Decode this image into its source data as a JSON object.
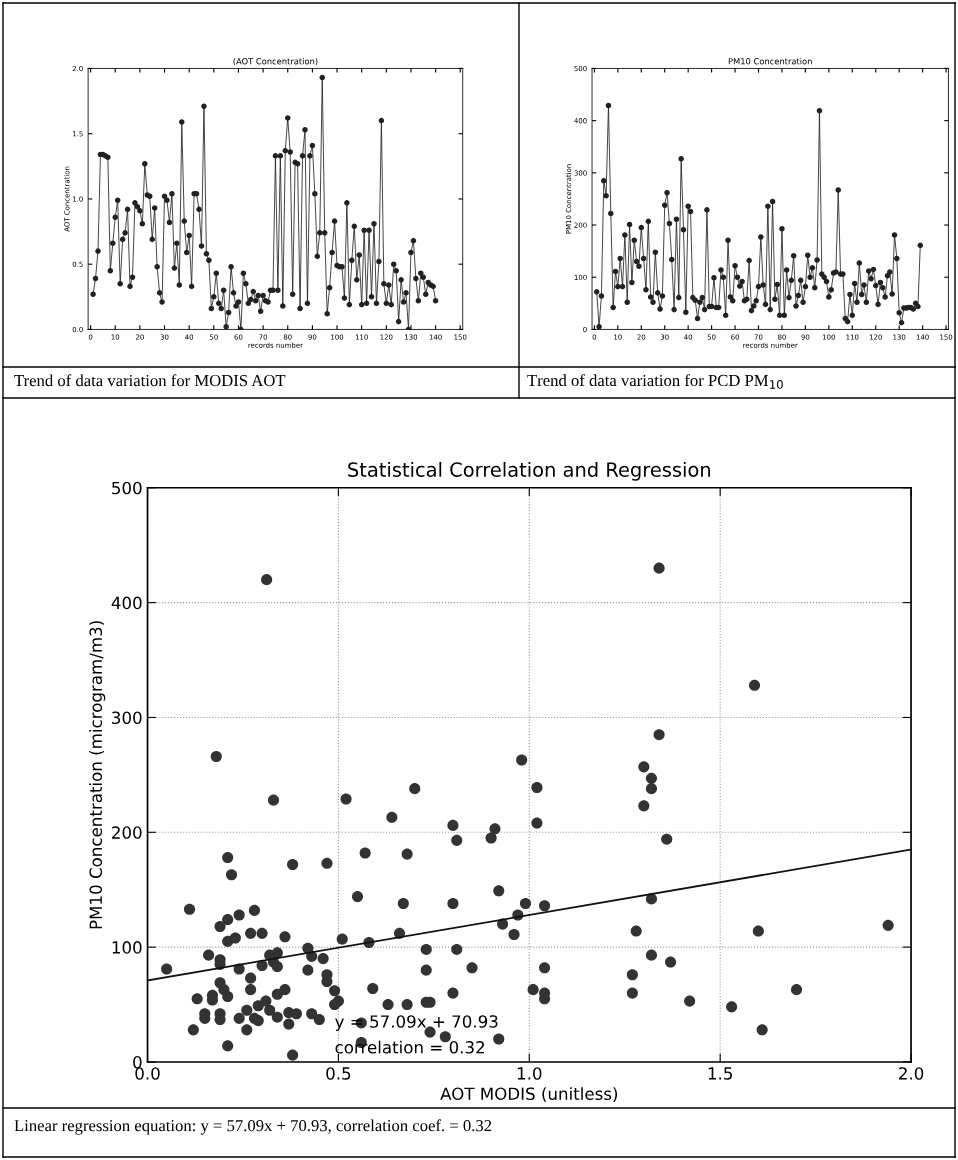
{
  "chart_data": [
    {
      "type": "line",
      "title": "(AOT Concentration)",
      "xlabel": "records number",
      "ylabel": "AOT Concentration",
      "marker": "circle",
      "line_style": "solid",
      "grid": false,
      "xlim": [
        -1,
        151
      ],
      "xticks": [
        0,
        10,
        20,
        30,
        40,
        50,
        60,
        70,
        80,
        90,
        100,
        110,
        120,
        130,
        140,
        150
      ],
      "ylim": [
        0,
        2
      ],
      "yticks": [
        {
          "value": 0,
          "label": "0.0"
        },
        {
          "value": 0.5,
          "label": "0.5"
        },
        {
          "value": 1,
          "label": "1.0"
        },
        {
          "value": 1.5,
          "label": "1.5"
        },
        {
          "value": 2,
          "label": "2.0"
        }
      ],
      "annotations": [
        "Trend of data variation for MODIS AOT"
      ],
      "x": [
        1,
        2,
        3,
        4,
        5,
        6,
        7,
        8,
        9,
        10,
        11,
        12,
        13,
        14,
        15,
        16,
        17,
        18,
        19,
        20,
        21,
        22,
        23,
        24,
        25,
        26,
        27,
        28,
        29,
        30,
        31,
        32,
        33,
        34,
        35,
        36,
        37,
        38,
        39,
        40,
        41,
        42,
        43,
        44,
        45,
        46,
        47,
        48,
        49,
        50,
        51,
        52,
        53,
        54,
        55,
        56,
        57,
        58,
        59,
        60,
        61,
        62,
        63,
        64,
        65,
        66,
        67,
        68,
        69,
        70,
        71,
        72,
        73,
        74,
        75,
        76,
        77,
        78,
        79,
        80,
        81,
        82,
        83,
        84,
        85,
        86,
        87,
        88,
        89,
        90,
        91,
        92,
        93,
        94,
        95,
        96,
        97,
        98,
        99,
        100,
        101,
        102,
        103,
        104,
        105,
        106,
        107,
        108,
        109,
        110,
        111,
        112,
        113,
        114,
        115,
        116,
        117,
        118,
        119,
        120,
        121,
        122,
        123,
        124,
        125,
        126,
        127,
        128,
        129,
        130,
        131,
        132,
        133,
        134,
        135,
        136,
        137,
        138,
        139,
        140
      ],
      "series": [
        {
          "color": "#222222",
          "values": [
            0.27,
            0.39,
            0.6,
            1.34,
            1.34,
            1.33,
            1.32,
            0.45,
            0.66,
            0.86,
            0.99,
            0.35,
            0.69,
            0.74,
            0.92,
            0.33,
            0.4,
            0.97,
            0.94,
            0.91,
            0.81,
            1.27,
            1.03,
            1.02,
            0.69,
            0.93,
            0.48,
            0.28,
            0.21,
            1.02,
            0.99,
            0.82,
            1.04,
            0.47,
            0.66,
            0.34,
            1.59,
            0.83,
            0.59,
            0.72,
            0.33,
            1.04,
            1.04,
            0.92,
            0.64,
            1.71,
            0.58,
            0.53,
            0.16,
            0.25,
            0.43,
            0.2,
            0.16,
            0.3,
            0.02,
            0.13,
            0.48,
            0.28,
            0.18,
            0.21,
            0.0,
            0.43,
            0.35,
            0.2,
            0.23,
            0.29,
            0.22,
            0.26,
            0.14,
            0.26,
            0.22,
            0.21,
            0.3,
            0.3,
            1.33,
            0.3,
            1.33,
            0.18,
            1.37,
            1.62,
            1.36,
            0.27,
            1.28,
            1.27,
            0.16,
            1.33,
            1.53,
            0.2,
            1.33,
            1.41,
            1.04,
            0.56,
            0.74,
            1.93,
            0.74,
            0.12,
            0.32,
            0.59,
            0.83,
            0.49,
            0.48,
            0.48,
            0.24,
            0.97,
            0.19,
            0.53,
            0.79,
            0.38,
            0.57,
            0.19,
            0.76,
            0.2,
            0.76,
            0.25,
            0.81,
            0.2,
            0.52,
            1.6,
            0.35,
            0.2,
            0.34,
            0.19,
            0.5,
            0.45,
            0.06,
            0.38,
            0.21,
            0.28,
            0.0,
            0.59,
            0.68,
            0.39,
            0.22,
            0.43,
            0.4,
            0.27,
            0.36,
            0.34,
            0.33,
            0.22
          ]
        }
      ]
    },
    {
      "type": "line",
      "title": "PM10 Concentration",
      "xlabel": "records number",
      "ylabel": "PM10 Concentration",
      "marker": "circle",
      "line_style": "solid",
      "grid": false,
      "xlim": [
        -1,
        151
      ],
      "xticks": [
        0,
        10,
        20,
        30,
        40,
        50,
        60,
        70,
        80,
        90,
        100,
        110,
        120,
        130,
        140,
        150
      ],
      "ylim": [
        0,
        500
      ],
      "yticks": [
        0,
        100,
        200,
        300,
        400,
        500
      ],
      "annotations": [
        "Trend of data variation for PCD PM$_{10}$"
      ],
      "x": [
        1,
        2,
        3,
        4,
        5,
        6,
        7,
        8,
        9,
        10,
        11,
        12,
        13,
        14,
        15,
        16,
        17,
        18,
        19,
        20,
        21,
        22,
        23,
        24,
        25,
        26,
        27,
        28,
        29,
        30,
        31,
        32,
        33,
        34,
        35,
        36,
        37,
        38,
        39,
        40,
        41,
        42,
        43,
        44,
        45,
        46,
        47,
        48,
        49,
        50,
        51,
        52,
        53,
        54,
        55,
        56,
        57,
        58,
        59,
        60,
        61,
        62,
        63,
        64,
        65,
        66,
        67,
        68,
        69,
        70,
        71,
        72,
        73,
        74,
        75,
        76,
        77,
        78,
        79,
        80,
        81,
        82,
        83,
        84,
        85,
        86,
        87,
        88,
        89,
        90,
        91,
        92,
        93,
        94,
        95,
        96,
        97,
        98,
        99,
        100,
        101,
        102,
        103,
        104,
        105,
        106,
        107,
        108,
        109,
        110,
        111,
        112,
        113,
        114,
        115,
        116,
        117,
        118,
        119,
        120,
        121,
        122,
        123,
        124,
        125,
        126,
        127,
        128,
        129,
        130,
        131,
        132,
        133,
        134,
        135,
        136,
        137,
        138,
        139
      ],
      "series": [
        {
          "color": "#222222",
          "values": [
            72,
            5,
            64,
            285,
            256,
            429,
            222,
            42,
            111,
            82,
            136,
            82,
            181,
            52,
            201,
            90,
            171,
            130,
            121,
            195,
            136,
            76,
            207,
            62,
            52,
            148,
            70,
            39,
            64,
            238,
            262,
            203,
            134,
            38,
            211,
            61,
            327,
            191,
            33,
            236,
            226,
            61,
            56,
            21,
            52,
            61,
            38,
            229,
            44,
            44,
            99,
            42,
            42,
            114,
            100,
            27,
            171,
            62,
            55,
            122,
            100,
            83,
            92,
            55,
            58,
            132,
            36,
            45,
            55,
            82,
            177,
            85,
            48,
            236,
            38,
            245,
            58,
            86,
            27,
            193,
            27,
            114,
            61,
            94,
            141,
            45,
            65,
            94,
            52,
            82,
            142,
            100,
            118,
            80,
            133,
            419,
            106,
            100,
            92,
            62,
            76,
            108,
            110,
            267,
            106,
            106,
            21,
            15,
            67,
            27,
            88,
            52,
            127,
            67,
            85,
            52,
            112,
            97,
            115,
            84,
            48,
            90,
            80,
            62,
            103,
            110,
            68,
            181,
            136,
            32,
            13,
            41,
            41,
            42,
            42,
            39,
            50,
            44,
            161
          ]
        }
      ]
    },
    {
      "type": "scatter",
      "title": "Statistical Correlation and Regression",
      "xlabel": "AOT MODIS (unitless)",
      "ylabel": "PM10 Concentration (microgram/m3)",
      "marker": "circle",
      "grid": true,
      "xlim": [
        0,
        2
      ],
      "xticks": [
        {
          "value": 0,
          "label": "0.0"
        },
        {
          "value": 0.5,
          "label": "0.5"
        },
        {
          "value": 1,
          "label": "1.0"
        },
        {
          "value": 1.5,
          "label": "1.5"
        },
        {
          "value": 2,
          "label": "2.0"
        }
      ],
      "ylim": [
        0,
        500
      ],
      "yticks": [
        0,
        100,
        200,
        300,
        400,
        500
      ],
      "annotations": [
        "y = 57.09x + 70.93",
        "correlation = 0.32",
        "Linear regression equation: y = 57.09x + 70.93, correlation coef. = 0.32"
      ],
      "series": [
        {
          "type": "scatter",
          "color": "#333333",
          "x": [
            0.312,
            0.18,
            1.34,
            1.59,
            1.34,
            0.98,
            1.3,
            1.32,
            1.32,
            1.3,
            1.02,
            1.02,
            1.36,
            0.91,
            0.9,
            0.92,
            0.99,
            1.04,
            0.97,
            0.93,
            0.96,
            1.32,
            1.28,
            1.6,
            1.94,
            1.32,
            1.37,
            1.04,
            1.27,
            1.01,
            1.04,
            1.04,
            1.27,
            1.42,
            1.7,
            1.53,
            1.61,
            0.92,
            0.33,
            0.52,
            0.7,
            0.64,
            0.8,
            0.81,
            0.21,
            0.22,
            0.38,
            0.47,
            0.57,
            0.68,
            0.55,
            0.67,
            0.8,
            0.11,
            0.28,
            0.24,
            0.21,
            0.19,
            0.36,
            0.21,
            0.23,
            0.27,
            0.3,
            0.51,
            0.58,
            0.66,
            0.73,
            0.81,
            0.16,
            0.05,
            0.19,
            0.19,
            0.24,
            0.3,
            0.32,
            0.34,
            0.33,
            0.34,
            0.42,
            0.43,
            0.46,
            0.42,
            0.47,
            0.47,
            0.27,
            0.73,
            0.85,
            0.19,
            0.2,
            0.21,
            0.27,
            0.36,
            0.34,
            0.49,
            0.59,
            0.13,
            0.17,
            0.17,
            0.5,
            0.49,
            0.63,
            0.68,
            0.73,
            0.74,
            0.8,
            0.29,
            0.31,
            0.15,
            0.15,
            0.19,
            0.19,
            0.26,
            0.24,
            0.28,
            0.29,
            0.32,
            0.34,
            0.37,
            0.39,
            0.43,
            0.45,
            0.37,
            0.12,
            0.26,
            0.56,
            0.56,
            0.21,
            0.38,
            0.74,
            0.78
          ],
          "values": [
            420,
            266,
            430,
            328,
            285,
            263,
            257,
            247,
            238,
            223,
            239,
            208,
            194,
            203,
            195,
            149,
            138,
            136,
            128,
            120,
            111,
            142,
            114,
            114,
            119,
            93,
            87,
            82,
            76,
            63,
            60,
            55,
            60,
            53,
            63,
            48,
            28,
            20,
            228,
            229,
            238,
            213,
            206,
            193,
            178,
            163,
            172,
            173,
            182,
            181,
            144,
            138,
            138,
            133,
            132,
            128,
            124,
            118,
            109,
            105,
            108,
            112,
            112,
            107,
            104,
            112,
            98,
            98,
            93,
            81,
            89,
            85,
            81,
            84,
            93,
            95,
            87,
            83,
            99,
            92,
            90,
            80,
            76,
            70,
            73,
            80,
            82,
            69,
            63,
            57,
            63,
            63,
            59,
            62,
            64,
            55,
            58,
            54,
            53,
            50,
            50,
            50,
            52,
            52,
            60,
            49,
            53,
            42,
            38,
            42,
            37,
            45,
            38,
            38,
            36,
            45,
            39,
            43,
            42,
            42,
            37,
            33,
            28,
            28,
            34,
            17,
            14,
            6,
            26,
            22
          ]
        },
        {
          "type": "line",
          "marker": "none",
          "color": "#111111",
          "x": [
            0,
            2
          ],
          "values": [
            71,
            185
          ]
        }
      ]
    }
  ]
}
